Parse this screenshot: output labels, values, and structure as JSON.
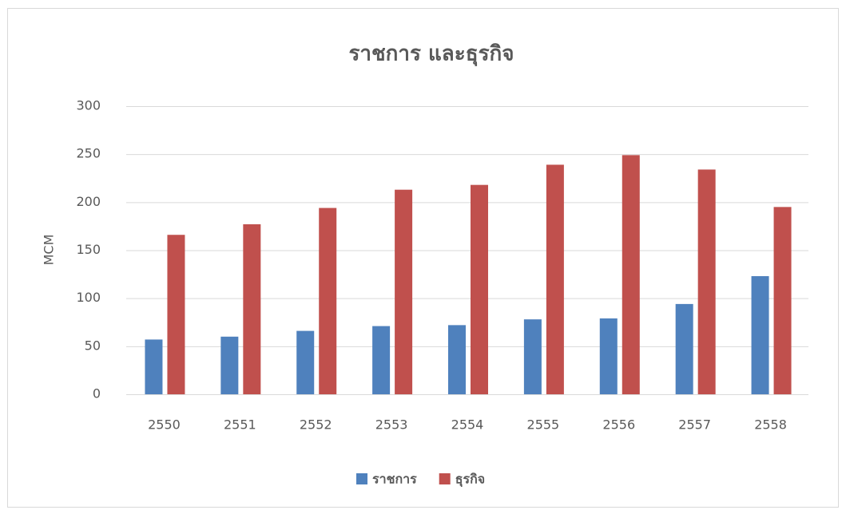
{
  "chart_data": {
    "type": "bar",
    "title": "ราชการ และธุรกิจ",
    "y_label": "MCM",
    "categories": [
      "2550",
      "2551",
      "2552",
      "2553",
      "2554",
      "2555",
      "2556",
      "2557",
      "2558"
    ],
    "series": [
      {
        "name": "ราชการ",
        "color": "#4f81bd",
        "values": [
          57,
          60,
          66,
          71,
          72,
          78,
          79,
          94,
          123
        ]
      },
      {
        "name": "ธุรกิจ",
        "color": "#c0504d",
        "values": [
          166,
          177,
          194,
          213,
          218,
          239,
          249,
          234,
          195
        ]
      }
    ],
    "ylim": [
      0,
      300
    ],
    "yticks": [
      0,
      50,
      100,
      150,
      200,
      250,
      300
    ],
    "grid": true,
    "legend": "bottom"
  }
}
